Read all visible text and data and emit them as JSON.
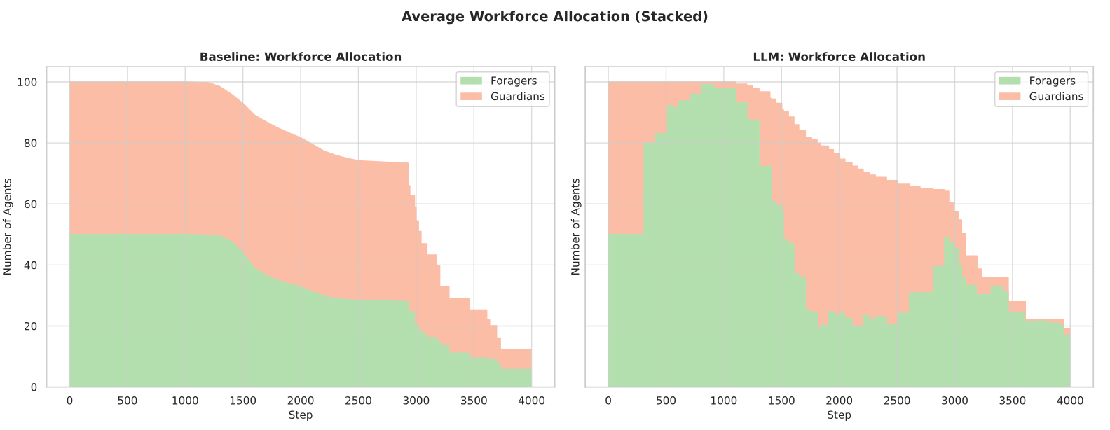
{
  "chart_data": [
    {
      "type": "area",
      "title": "Baseline: Workforce Allocation",
      "xlabel": "Step",
      "ylabel": "Number of Agents",
      "annotations": [
        "Average Workforce Allocation (Stacked)"
      ],
      "stacked": true,
      "legend": "top right",
      "grid": true,
      "xlim": [
        -200,
        4200
      ],
      "xticks": [
        0,
        500,
        1000,
        1500,
        2000,
        2500,
        3000,
        3500,
        4000
      ],
      "ylim": [
        0,
        105
      ],
      "yticks": [
        0,
        20,
        40,
        60,
        80,
        100
      ],
      "x": [
        0,
        1000,
        1200,
        1300,
        1400,
        1500,
        1600,
        1700,
        1800,
        1900,
        2000,
        2100,
        2200,
        2300,
        2400,
        2500,
        2700,
        2930,
        2930,
        2946,
        2946,
        2986,
        2986,
        3000,
        3000,
        3020,
        3020,
        3043,
        3043,
        3054,
        3054,
        3094,
        3094,
        3176,
        3176,
        3205,
        3205,
        3285,
        3285,
        3460,
        3460,
        3612,
        3612,
        3637,
        3637,
        3697,
        3697,
        3730,
        3730,
        4000
      ],
      "series": [
        {
          "name": "Foragers",
          "color": "#b3dfae",
          "values": [
            50,
            50,
            49.8,
            49.5,
            47.8,
            44,
            39,
            36.6,
            35,
            33.9,
            32.8,
            31.2,
            29.9,
            29,
            28.7,
            28.5,
            28.3,
            28,
            24.7,
            24.7,
            24.7,
            24.7,
            20.4,
            20.4,
            20.4,
            20.4,
            18.5,
            18.5,
            18.5,
            18.5,
            17.3,
            17.3,
            16.3,
            16.3,
            15.2,
            15.2,
            13.8,
            13.8,
            11.1,
            11.1,
            9.5,
            9.5,
            9.1,
            9.1,
            9.1,
            9.1,
            7.5,
            7.5,
            5.8,
            5.8
          ]
        },
        {
          "name": "Guardians",
          "color": "#fbbda6",
          "values": [
            50,
            50,
            50,
            49,
            48.2,
            49,
            50.2,
            50.4,
            50,
            49.4,
            48.9,
            48.4,
            47.5,
            47,
            46.3,
            45.7,
            45.5,
            45.4,
            41.3,
            41.3,
            38.2,
            38.2,
            38.6,
            38.6,
            34.1,
            34.1,
            32.5,
            32.5,
            28.5,
            28.5,
            29.7,
            29.7,
            27,
            27,
            24.6,
            24.6,
            19.2,
            19.2,
            17.9,
            17.9,
            15.8,
            15.8,
            12.9,
            12.9,
            11,
            11,
            8.6,
            8.6,
            6.6,
            6.6
          ]
        }
      ]
    },
    {
      "type": "area",
      "title": "LLM: Workforce Allocation",
      "xlabel": "Step",
      "ylabel": "Number of Agents",
      "stacked": true,
      "legend": "top right",
      "grid": true,
      "tick_labels": "x",
      "xlim": [
        -200,
        4200
      ],
      "xticks": [
        0,
        500,
        1000,
        1500,
        2000,
        2500,
        3000,
        3500,
        4000
      ],
      "ylim": [
        0,
        105
      ],
      "yticks": [
        0,
        20,
        40,
        60,
        80,
        100
      ],
      "x": [
        0,
        309,
        309,
        410,
        410,
        512,
        512,
        560,
        560,
        611,
        611,
        710,
        710,
        810,
        810,
        914,
        914,
        1100,
        1100,
        1200,
        1200,
        1250,
        1250,
        1305,
        1305,
        1400,
        1400,
        1410,
        1410,
        1450,
        1450,
        1503,
        1503,
        1517,
        1517,
        1560,
        1560,
        1608,
        1608,
        1650,
        1650,
        1707,
        1707,
        1760,
        1760,
        1809,
        1809,
        1840,
        1840,
        1908,
        1908,
        1950,
        1950,
        2004,
        2004,
        2050,
        2050,
        2111,
        2111,
        2160,
        2160,
        2208,
        2208,
        2260,
        2260,
        2313,
        2313,
        2409,
        2409,
        2508,
        2508,
        2607,
        2607,
        2700,
        2700,
        2813,
        2813,
        2912,
        2912,
        2949,
        2949,
        2989,
        2989,
        3031,
        3031,
        3060,
        3060,
        3094,
        3094,
        3187,
        3187,
        3193,
        3193,
        3235,
        3235,
        3314,
        3314,
        3413,
        3413,
        3464,
        3464,
        3612,
        3612,
        3719,
        3719,
        3810,
        3810,
        3900,
        3900,
        3943,
        3943,
        4000
      ],
      "series": [
        {
          "name": "Foragers",
          "color": "#b3dfae",
          "values": [
            50,
            50,
            80,
            80,
            83,
            83,
            92.2,
            92.2,
            91.6,
            91.6,
            93.8,
            93.8,
            96,
            96,
            99.1,
            99.1,
            97.8,
            97.8,
            93.3,
            93.3,
            87.6,
            87.6,
            87.2,
            87.2,
            72.3,
            72.3,
            72.3,
            72.3,
            60.8,
            60.8,
            59.5,
            59.5,
            57.5,
            57.5,
            48.4,
            48.4,
            47,
            47,
            37.1,
            37.1,
            36,
            36,
            25.3,
            25.3,
            24.5,
            24.5,
            19.5,
            19.5,
            20.3,
            20.3,
            24.7,
            24.7,
            23.8,
            23.8,
            24.2,
            24.2,
            22.5,
            22.5,
            19.9,
            19.9,
            19.9,
            19.9,
            23.4,
            23.4,
            22,
            22,
            23.1,
            23.1,
            20.4,
            20.4,
            24.2,
            24.2,
            30.9,
            30.9,
            30.9,
            30.9,
            39.5,
            39.5,
            49.1,
            49.1,
            47.3,
            47.3,
            45.4,
            45.4,
            39.8,
            39.8,
            36,
            36,
            33.3,
            33.3,
            30.3,
            30.3,
            30.3,
            30.3,
            30.3,
            30.3,
            32.8,
            32.8,
            31.2,
            31.2,
            24.5,
            24.5,
            21.3,
            21.3,
            21.7,
            21.7,
            21,
            21,
            20.4,
            20.4,
            17,
            17
          ]
        },
        {
          "name": "Guardians",
          "color": "#fbbda6",
          "values": [
            50,
            50,
            20,
            20,
            17,
            17,
            7.8,
            7.8,
            8.4,
            8.4,
            6.2,
            6.2,
            4,
            4,
            0.9,
            0.9,
            2.2,
            2.2,
            6,
            6,
            11.3,
            11.3,
            10.8,
            10.8,
            24.5,
            24.5,
            22.3,
            22.3,
            33.6,
            33.6,
            33.5,
            33.5,
            33.4,
            33.4,
            41.9,
            41.9,
            41.5,
            41.5,
            48.9,
            48.9,
            48,
            48,
            56.6,
            56.6,
            56.5,
            56.5,
            60.4,
            60.4,
            58.7,
            58.7,
            53.1,
            53.1,
            52.7,
            52.7,
            50.5,
            50.5,
            51.1,
            51.1,
            52.5,
            52.5,
            51.5,
            51.5,
            47,
            47,
            47.5,
            47.5,
            45.6,
            45.6,
            47.3,
            47.3,
            42.3,
            42.3,
            34.7,
            34.7,
            34.2,
            34.2,
            25.2,
            25.2,
            15.1,
            15.1,
            13.1,
            13.1,
            12.1,
            12.1,
            15,
            15,
            14.5,
            14.5,
            9.7,
            9.7,
            12.7,
            12.7,
            8.4,
            8.4,
            5.7,
            5.7,
            3.2,
            3.2,
            4.8,
            4.8,
            3.5,
            3.5,
            0.7,
            0.7,
            0.3,
            0.3,
            1,
            1,
            1.6,
            1.6,
            2.1,
            2.1
          ]
        }
      ]
    }
  ]
}
